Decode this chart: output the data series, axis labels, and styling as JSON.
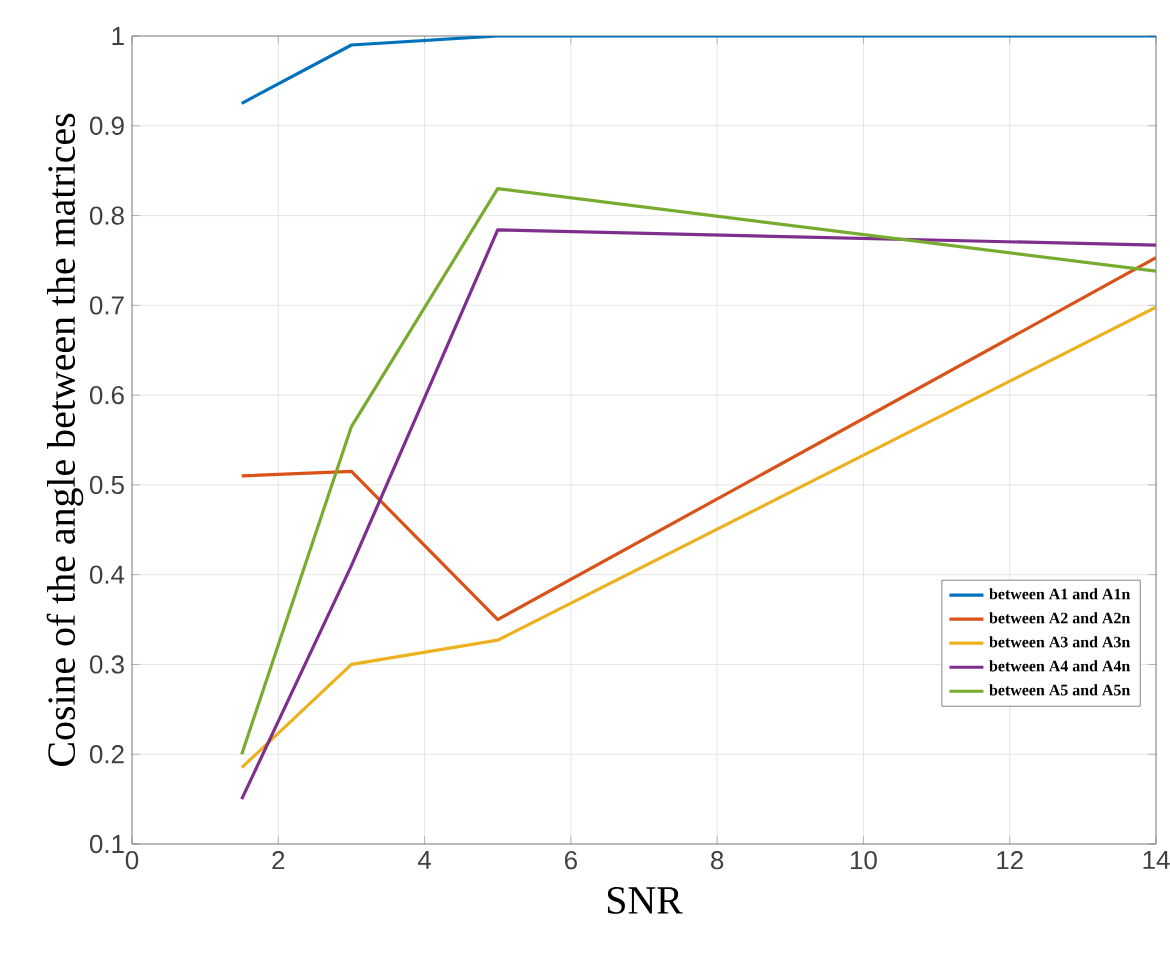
{
  "chart_data": {
    "type": "line",
    "xlabel": "SNR",
    "ylabel": "Cosine of the angle between the matrices",
    "xlim": [
      0,
      14
    ],
    "xticks": [
      0,
      2,
      4,
      6,
      8,
      10,
      12,
      14
    ],
    "ylim": [
      0.1,
      1
    ],
    "yticks": [
      0.1,
      0.2,
      0.3,
      0.4,
      0.5,
      0.6,
      0.7,
      0.8,
      0.9,
      1
    ],
    "grid": true,
    "legend": "bottom right",
    "marker": "none",
    "line_style": "solid",
    "x": [
      1.5,
      3,
      5,
      14
    ],
    "series": [
      {
        "name": "between A1 and A1n",
        "color": "#0072bd",
        "values": [
          0.925,
          0.99,
          1.0,
          1.0
        ]
      },
      {
        "name": "between A2 and A2n",
        "color": "#d95319",
        "values": [
          0.51,
          0.515,
          0.35,
          0.753
        ]
      },
      {
        "name": "between A3 and A3n",
        "color": "#edb120",
        "values": [
          0.185,
          0.3,
          0.327,
          0.698
        ]
      },
      {
        "name": "between A4 and A4n",
        "color": "#7e2f8e",
        "values": [
          0.15,
          0.41,
          0.784,
          0.767
        ]
      },
      {
        "name": "between A5 and A5n",
        "color": "#77ac30",
        "values": [
          0.2,
          0.565,
          0.83,
          0.738
        ]
      }
    ]
  }
}
